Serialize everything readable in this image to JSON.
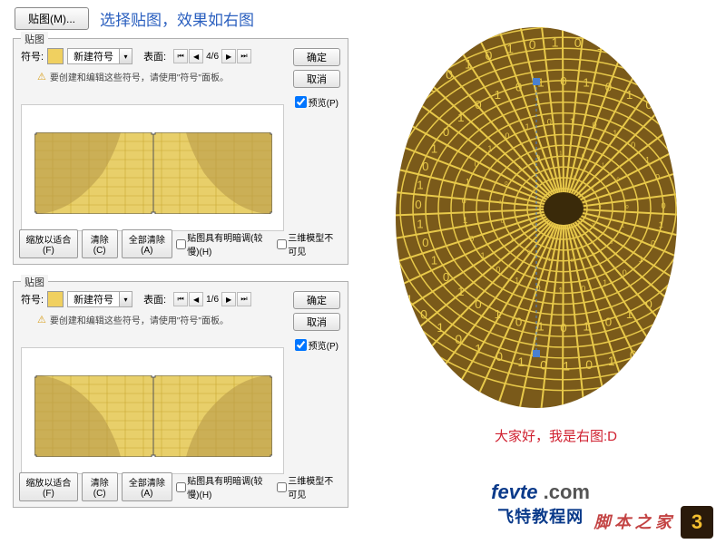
{
  "topbar": {
    "map_button": "贴图(M)...",
    "title": "选择贴图，效果如右图"
  },
  "panel": {
    "title": "贴图",
    "symbol_label": "符号:",
    "symbol_value": "新建符号",
    "swatch_color": "#f0d060",
    "surface_label": "表面:",
    "nav_first": "⏮",
    "nav_prev": "◀",
    "page1": "4/6",
    "page2": "1/6",
    "nav_next": "▶",
    "nav_last": "⏭",
    "hint": "要创建和编辑这些符号，请使用\"符号\"面板。",
    "ok": "确定",
    "cancel": "取消",
    "preview": "预览(P)",
    "fit": "缩放以适合(F)",
    "clear": "清除(C)",
    "clear_all": "全部清除(A)",
    "shade": "贴图具有明暗调(较慢)(H)",
    "invisible": "三维模型不可见"
  },
  "texture": {
    "fill": "#e8cf6a",
    "line": "#c9a832",
    "frame": "#555555",
    "curve_fill": "#b89a4a"
  },
  "ellipse": {
    "bg": "#7a5a1a",
    "line": "#e8c94a",
    "digit": "#e8c94a"
  },
  "caption": "大家好，我是右图:D",
  "logo": {
    "brand": "fevte",
    "dot": " .com",
    "sub": "飞特教程网"
  },
  "watermark": "脚 本 之 家",
  "badge": "3"
}
